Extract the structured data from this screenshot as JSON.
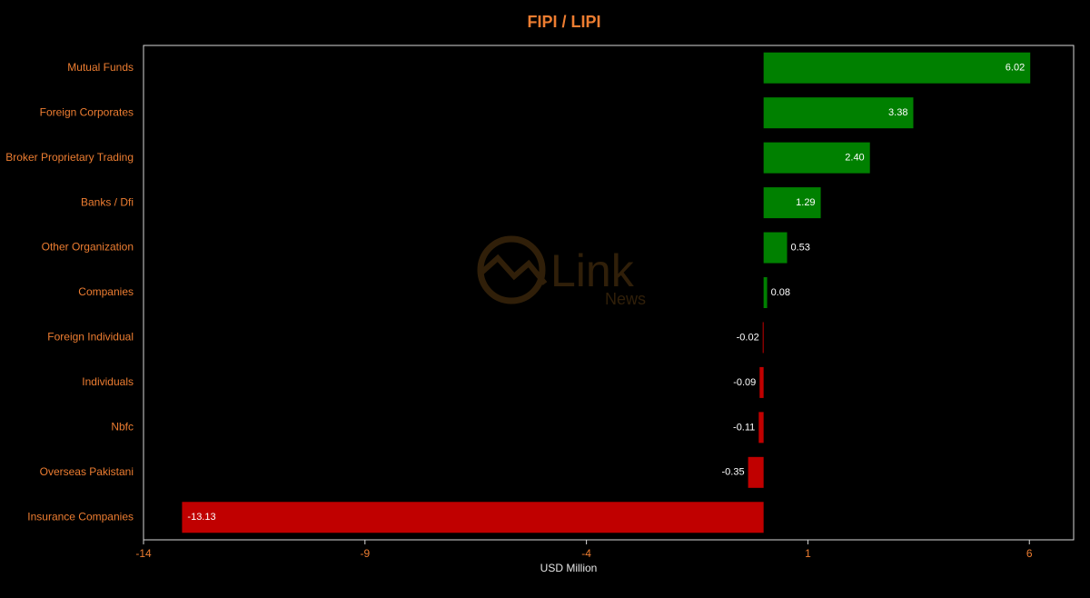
{
  "chart_data": {
    "type": "barh",
    "title": "FIPI / LIPI",
    "categories": [
      "Mutual Funds",
      "Foreign Corporates",
      "Broker Proprietary Trading",
      "Banks / Dfi",
      "Other Organization",
      "Companies",
      "Foreign Individual",
      "Individuals",
      "Nbfc",
      "Overseas Pakistani",
      "Insurance Companies"
    ],
    "values": [
      6.02,
      3.38,
      2.4,
      1.29,
      0.53,
      0.08,
      -0.02,
      -0.09,
      -0.11,
      -0.35,
      -13.13
    ],
    "value_labels": [
      "6.02",
      "3.38",
      "2.40",
      "1.29",
      "0.53",
      "0.08",
      "-0.02",
      "-0.09",
      "-0.11",
      "-0.35",
      "-13.13"
    ],
    "colors": [
      "#008000",
      "#008000",
      "#008000",
      "#008000",
      "#008000",
      "#008000",
      "#c00000",
      "#c00000",
      "#c00000",
      "#c00000",
      "#c00000"
    ],
    "xlim": [
      -14,
      7
    ],
    "xticks": [
      -14,
      -9,
      -4,
      1,
      6
    ],
    "xlabel": "USD Million",
    "watermark": {
      "brand": "Link",
      "sub": "News"
    }
  }
}
